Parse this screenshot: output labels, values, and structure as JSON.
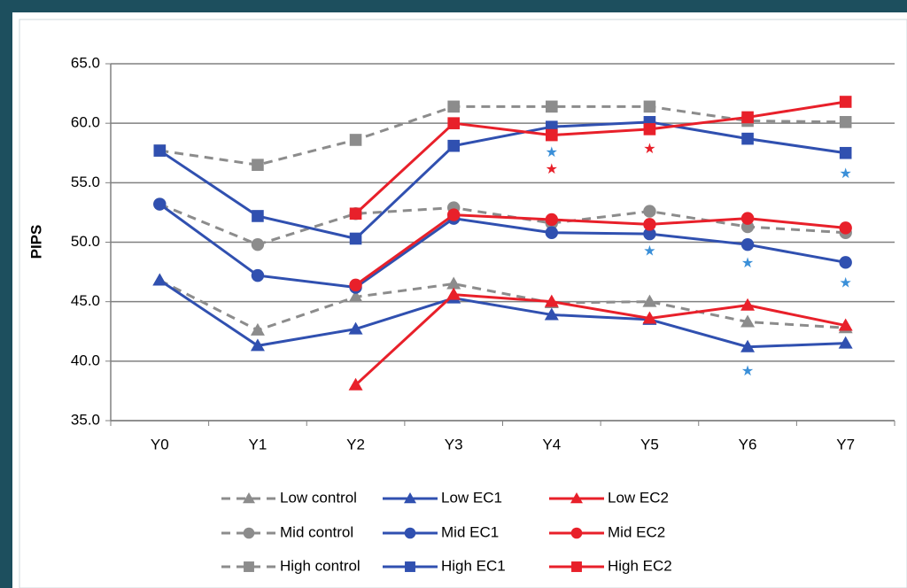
{
  "chart_data": {
    "type": "line",
    "y_label": "PIPS",
    "categories": [
      "Y0",
      "Y1",
      "Y2",
      "Y3",
      "Y4",
      "Y5",
      "Y6",
      "Y7"
    ],
    "ylim": [
      35,
      65
    ],
    "yticks": [
      {
        "value": 35,
        "label": "35.0"
      },
      {
        "value": 40,
        "label": "40.0"
      },
      {
        "value": 45,
        "label": "45.0"
      },
      {
        "value": 50,
        "label": "50.0"
      },
      {
        "value": 55,
        "label": "55.0"
      },
      {
        "value": 60,
        "label": "60.0"
      },
      {
        "value": 65,
        "label": "65.0"
      }
    ],
    "grid": true,
    "series": [
      {
        "name": "Low control",
        "color": "#8c8c8c",
        "dashed": true,
        "marker": "triangle",
        "values": [
          46.8,
          42.6,
          45.4,
          46.5,
          44.9,
          45.0,
          43.3,
          42.8
        ]
      },
      {
        "name": "Low EC1",
        "color": "#3050b0",
        "dashed": false,
        "marker": "triangle",
        "values": [
          46.8,
          41.3,
          42.7,
          45.3,
          43.9,
          43.5,
          41.2,
          41.5
        ]
      },
      {
        "name": "Low EC2",
        "color": "#e8202a",
        "dashed": false,
        "marker": "triangle",
        "values": [
          null,
          null,
          38.0,
          45.6,
          45.0,
          43.6,
          44.7,
          43.0
        ]
      },
      {
        "name": "Mid control",
        "color": "#8c8c8c",
        "dashed": true,
        "marker": "circle",
        "values": [
          53.2,
          49.8,
          52.4,
          52.9,
          51.6,
          52.6,
          51.3,
          50.8
        ]
      },
      {
        "name": "Mid EC1",
        "color": "#3050b0",
        "dashed": false,
        "marker": "circle",
        "values": [
          53.2,
          47.2,
          46.2,
          52.0,
          50.8,
          50.7,
          49.8,
          48.3
        ]
      },
      {
        "name": "Mid EC2",
        "color": "#e8202a",
        "dashed": false,
        "marker": "circle",
        "values": [
          null,
          null,
          46.4,
          52.3,
          51.9,
          51.5,
          52.0,
          51.2
        ]
      },
      {
        "name": "High control",
        "color": "#8c8c8c",
        "dashed": true,
        "marker": "square",
        "values": [
          57.7,
          56.5,
          58.6,
          61.4,
          61.4,
          61.4,
          60.2,
          60.1
        ]
      },
      {
        "name": "High EC1",
        "color": "#3050b0",
        "dashed": false,
        "marker": "square",
        "values": [
          57.7,
          52.2,
          50.3,
          58.1,
          59.7,
          60.1,
          58.7,
          57.5
        ]
      },
      {
        "name": "High EC2",
        "color": "#e8202a",
        "dashed": false,
        "marker": "square",
        "values": [
          null,
          null,
          52.4,
          60.0,
          59.0,
          59.5,
          60.5,
          61.8
        ]
      }
    ],
    "annotations": [
      {
        "category": 4,
        "y": 57.5,
        "text": "★",
        "color": "#3a8fd8"
      },
      {
        "category": 4,
        "y": 56.1,
        "text": "★",
        "color": "#e8202a"
      },
      {
        "category": 5,
        "y": 57.8,
        "text": "★",
        "color": "#e8202a"
      },
      {
        "category": 5,
        "y": 49.2,
        "text": "★",
        "color": "#3a8fd8"
      },
      {
        "category": 6,
        "y": 48.2,
        "text": "★",
        "color": "#3a8fd8"
      },
      {
        "category": 6,
        "y": 39.1,
        "text": "★",
        "color": "#3a8fd8"
      },
      {
        "category": 7,
        "y": 55.7,
        "text": "★",
        "color": "#3a8fd8"
      },
      {
        "category": 7,
        "y": 46.5,
        "text": "★",
        "color": "#3a8fd8"
      }
    ]
  }
}
